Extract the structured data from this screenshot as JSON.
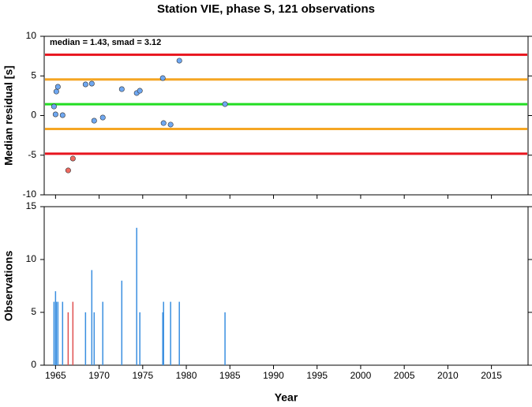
{
  "chart_data": [
    {
      "type": "scatter",
      "title": "Station VIE, phase S, 121 observations",
      "ylabel": "Median residual [s]",
      "annotation": "median = 1.43, smad = 3.12",
      "xlim": [
        1963.7,
        2019.2
      ],
      "xticks": [
        1965,
        1970,
        1975,
        1980,
        1985,
        1990,
        1995,
        2000,
        2005,
        2010,
        2015
      ],
      "xtick_labels": false,
      "ylim": [
        -10,
        10
      ],
      "yticks": [
        -10,
        -5,
        0,
        5,
        10
      ],
      "hlines": [
        {
          "value": 7.67,
          "color": "#e8141e"
        },
        {
          "value": 4.55,
          "color": "#f5a623"
        },
        {
          "value": 1.43,
          "color": "#22dd22"
        },
        {
          "value": -1.69,
          "color": "#f5a623"
        },
        {
          "value": -4.81,
          "color": "#e8141e"
        }
      ],
      "series": [
        {
          "color": "#6fa8f2",
          "x": [
            1964.82,
            1965.0,
            1965.09,
            1965.27,
            1965.81,
            1968.44,
            1969.16,
            1969.43,
            1970.42,
            1972.6,
            1974.31,
            1974.67,
            1977.3,
            1977.39,
            1978.2,
            1979.2,
            1984.44
          ],
          "values": [
            1.14,
            0.15,
            3.03,
            3.63,
            0.05,
            3.93,
            4.03,
            -0.65,
            -0.25,
            3.33,
            2.84,
            3.13,
            4.73,
            -0.95,
            -1.14,
            6.92,
            1.44
          ]
        },
        {
          "color": "#f06a60",
          "x": [
            1966.45,
            1966.99
          ],
          "values": [
            -6.92,
            -5.42
          ]
        }
      ]
    },
    {
      "type": "bar",
      "xlabel": "Year",
      "ylabel": "Observations",
      "xlim": [
        1963.7,
        2019.2
      ],
      "xticks": [
        1965,
        1970,
        1975,
        1980,
        1985,
        1990,
        1995,
        2000,
        2005,
        2010,
        2015
      ],
      "xtick_labels": true,
      "ylim": [
        0,
        15
      ],
      "yticks": [
        0,
        5,
        10,
        15
      ],
      "series": [
        {
          "color": "#3a8fe0",
          "x": [
            1964.82,
            1965.0,
            1965.09,
            1965.27,
            1965.81,
            1968.44,
            1969.16,
            1969.43,
            1970.42,
            1972.6,
            1974.31,
            1974.67,
            1977.3,
            1977.39,
            1978.2,
            1979.2,
            1984.44
          ],
          "values": [
            6,
            7,
            6,
            6,
            6,
            5,
            9,
            5,
            6,
            8,
            13,
            5,
            5,
            6,
            6,
            6,
            5
          ]
        },
        {
          "color": "#e05050",
          "x": [
            1966.45,
            1966.99
          ],
          "values": [
            5,
            6
          ]
        }
      ]
    }
  ]
}
